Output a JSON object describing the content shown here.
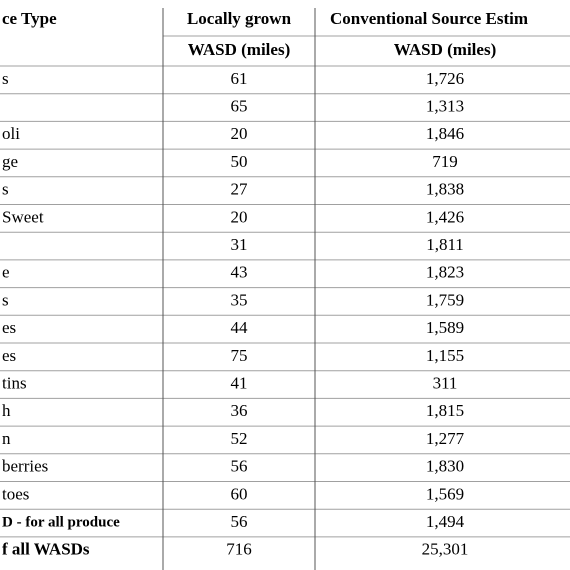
{
  "table": {
    "header": [
      [
        "ce Type",
        "Locally grown",
        "Conventional Source Estim"
      ],
      [
        "",
        "WASD (miles)",
        "WASD (miles)"
      ]
    ],
    "rows": [
      [
        "s",
        "61",
        "1,726"
      ],
      [
        "",
        "65",
        "1,313"
      ],
      [
        "oli",
        "20",
        "1,846"
      ],
      [
        "ge",
        "50",
        "719"
      ],
      [
        "s",
        "27",
        "1,838"
      ],
      [
        "Sweet",
        "20",
        "1,426"
      ],
      [
        "",
        "31",
        "1,811"
      ],
      [
        "e",
        "43",
        "1,823"
      ],
      [
        "s",
        "35",
        "1,759"
      ],
      [
        "es",
        "44",
        "1,589"
      ],
      [
        "es",
        "75",
        "1,155"
      ],
      [
        "tins",
        "41",
        "311"
      ],
      [
        "h",
        "36",
        "1,815"
      ],
      [
        "n",
        "52",
        "1,277"
      ],
      [
        "berries",
        "56",
        "1,830"
      ],
      [
        "toes",
        "60",
        "1,569"
      ],
      [
        "D - for all produce",
        "56",
        "1,494"
      ],
      [
        "f all WASDs",
        "716",
        "25,301"
      ]
    ]
  }
}
